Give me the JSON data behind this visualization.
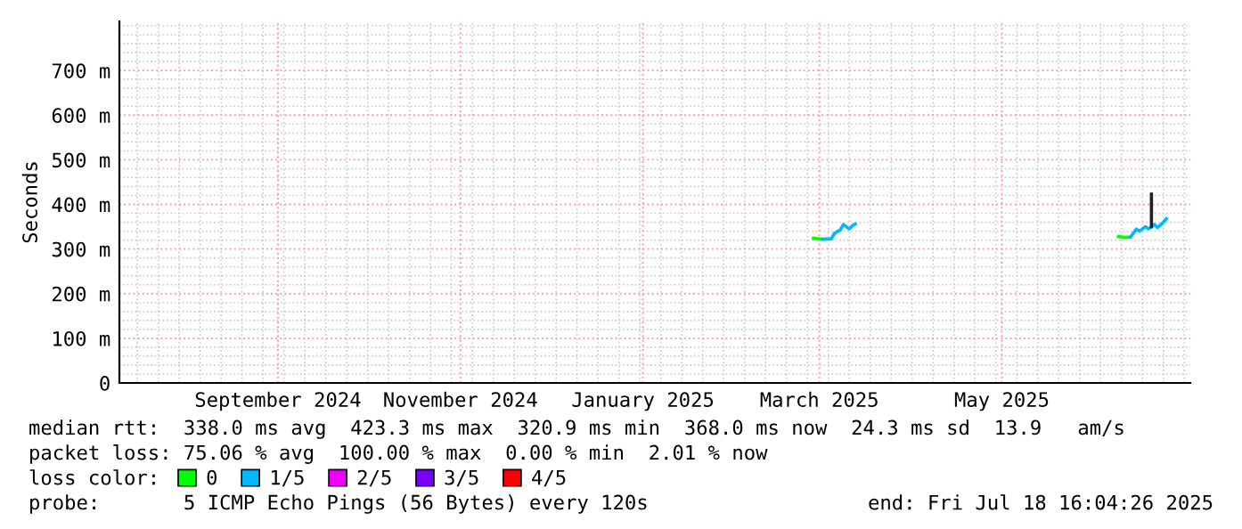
{
  "chart_data": {
    "type": "line",
    "ylabel": "Seconds",
    "xlim": [
      "2024-07-25",
      "2025-07-18"
    ],
    "xticks": [
      {
        "value": "2024-09-16",
        "label": "September 2024"
      },
      {
        "value": "2024-11-16",
        "label": "November 2024"
      },
      {
        "value": "2025-01-16",
        "label": "January 2025"
      },
      {
        "value": "2025-03-16",
        "label": "March 2025"
      },
      {
        "value": "2025-05-16",
        "label": "May 2025"
      }
    ],
    "ylim": [
      0,
      810
    ],
    "yticks": [
      0,
      {
        "value": 100,
        "label": "100 m"
      },
      {
        "value": 200,
        "label": "200 m"
      },
      {
        "value": 300,
        "label": "300 m"
      },
      {
        "value": 400,
        "label": "400 m"
      },
      {
        "value": 500,
        "label": "500 m"
      },
      {
        "value": 600,
        "label": "600 m"
      },
      {
        "value": 700,
        "label": "700 m"
      }
    ],
    "grid": true,
    "legend": "bottom",
    "legend_title": "loss color:",
    "series": [
      {
        "name": "0",
        "color": "#00ff00",
        "x": [
          "2025-03-14",
          "2025-03-17"
        ],
        "values": [
          324,
          322
        ]
      },
      {
        "color": "#00ff00",
        "x": [
          "2025-06-24",
          "2025-06-26",
          "2025-06-28"
        ],
        "values": [
          328,
          326,
          327
        ]
      },
      {
        "name": "1/5",
        "color": "#00b8ff",
        "x": [
          "2025-03-17",
          "2025-03-20",
          "2025-03-21",
          "2025-03-23",
          "2025-03-24",
          "2025-03-26",
          "2025-03-27",
          "2025-03-28"
        ],
        "values": [
          322,
          323,
          335,
          343,
          355,
          345,
          352,
          356
        ]
      },
      {
        "color": "#00b8ff",
        "x": [
          "2025-06-28",
          "2025-06-30",
          "2025-07-01",
          "2025-07-03",
          "2025-07-04",
          "2025-07-05",
          "2025-07-06",
          "2025-07-07",
          "2025-07-09",
          "2025-07-10"
        ],
        "values": [
          327,
          345,
          340,
          350,
          345,
          350,
          355,
          348,
          360,
          368
        ]
      },
      {
        "name": "2/5",
        "color": "#ee00ff"
      },
      {
        "name": "3/5",
        "color": "#7700ff"
      },
      {
        "name": "4/5",
        "color": "#ff0000"
      },
      {
        "color": "#222222",
        "x": [
          "2025-07-05",
          "2025-07-05"
        ],
        "values": [
          350,
          423
        ]
      }
    ],
    "annotations": [
      "median rtt:  338.0 ms avg  423.3 ms max  320.9 ms min  368.0 ms now  24.3 ms sd  13.9   am/s",
      "packet loss: 75.06 % avg  100.00 % max  0.00 % min  2.01 % now",
      "probe:       5 ICMP Echo Pings (56 Bytes) every 120s",
      "end: Fri Jul 18 16:04:26 2025"
    ]
  }
}
